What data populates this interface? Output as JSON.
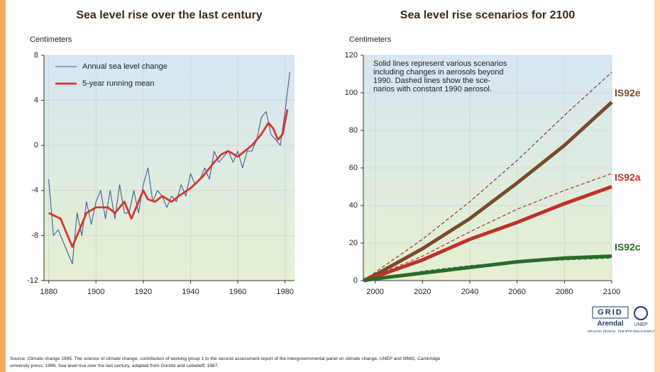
{
  "chart_data": [
    {
      "type": "line",
      "title": "Sea level rise over the last century",
      "ylabel": "Centimeters",
      "xlim": [
        1878,
        1984
      ],
      "xticks": [
        1880,
        1900,
        1920,
        1940,
        1960,
        1980
      ],
      "ylim": [
        -12,
        8
      ],
      "yticks": [
        -12,
        -8,
        -4,
        0,
        4,
        8
      ],
      "grid": true,
      "legend": "upper left",
      "series": [
        {
          "name": "Annual sea level change",
          "color": "#3a5f9a",
          "style": "thin",
          "x": [
            1880,
            1882,
            1884,
            1886,
            1888,
            1890,
            1892,
            1894,
            1896,
            1898,
            1900,
            1902,
            1904,
            1906,
            1908,
            1910,
            1912,
            1914,
            1916,
            1918,
            1920,
            1922,
            1924,
            1926,
            1928,
            1930,
            1932,
            1934,
            1936,
            1938,
            1940,
            1942,
            1944,
            1946,
            1948,
            1950,
            1952,
            1954,
            1956,
            1958,
            1960,
            1962,
            1964,
            1966,
            1968,
            1970,
            1972,
            1974,
            1976,
            1978,
            1980,
            1982
          ],
          "values": [
            -3,
            -8,
            -7.5,
            -8.5,
            -9.5,
            -10.5,
            -6,
            -8,
            -5,
            -7,
            -5,
            -4,
            -6.5,
            -4,
            -6.5,
            -3.5,
            -6,
            -6,
            -4,
            -6,
            -3.5,
            -2,
            -5,
            -4,
            -4.5,
            -5.5,
            -4.5,
            -5,
            -3.5,
            -4.5,
            -2.5,
            -3.5,
            -3,
            -2,
            -3,
            -0.5,
            -1.5,
            -1,
            -0.5,
            -1.5,
            -0.5,
            -2,
            -0.5,
            -0.5,
            0.5,
            2.5,
            3,
            1,
            0.5,
            0,
            3,
            6.5
          ]
        },
        {
          "name": "5-year running mean",
          "color": "#d9342b",
          "style": "thick",
          "x": [
            1880,
            1885,
            1888,
            1890,
            1893,
            1896,
            1900,
            1905,
            1908,
            1912,
            1915,
            1918,
            1920,
            1922,
            1925,
            1928,
            1932,
            1935,
            1940,
            1945,
            1950,
            1953,
            1956,
            1960,
            1963,
            1966,
            1970,
            1973,
            1975,
            1977,
            1979,
            1981
          ],
          "values": [
            -6,
            -6.5,
            -8,
            -9,
            -7.5,
            -6,
            -5.5,
            -5.5,
            -6,
            -5,
            -6.5,
            -5,
            -4,
            -4.8,
            -5,
            -4.5,
            -5,
            -4.5,
            -3.8,
            -2.8,
            -1.5,
            -0.8,
            -0.5,
            -1,
            -0.5,
            0,
            1,
            2,
            1.5,
            0.5,
            1,
            3.2
          ]
        }
      ]
    },
    {
      "type": "line",
      "title": "Sea level rise scenarios for 2100",
      "ylabel": "Centimeters",
      "xlim": [
        1995,
        2100
      ],
      "xticks": [
        2000,
        2020,
        2040,
        2060,
        2080,
        2100
      ],
      "ylim": [
        0,
        120
      ],
      "yticks": [
        0,
        20,
        40,
        60,
        80,
        100,
        120
      ],
      "grid": true,
      "series_labels": "end",
      "annotation": [
        "Solid lines represent various scenarios",
        "including changes in aerosols beyond",
        "1990. Dashed lines show the sce-",
        "narios with constant 1990 aerosol."
      ],
      "series": [
        {
          "color": "#8a3a2a",
          "style": "dashed",
          "x": [
            1995,
            2020,
            2040,
            2060,
            2080,
            2100
          ],
          "values": [
            0,
            22,
            42,
            64,
            88,
            111
          ]
        },
        {
          "name": "IS92e",
          "color": "#7a4a2a",
          "style": "heavy",
          "x": [
            1995,
            2000,
            2020,
            2040,
            2060,
            2080,
            2100
          ],
          "values": [
            0,
            3,
            17,
            33,
            52,
            72,
            95
          ]
        },
        {
          "color": "#b0302a",
          "style": "dashed",
          "x": [
            1995,
            2020,
            2040,
            2060,
            2080,
            2100
          ],
          "values": [
            0,
            13,
            26,
            38,
            48,
            57
          ]
        },
        {
          "name": "IS92a",
          "color": "#c0302a",
          "style": "heavy",
          "x": [
            1995,
            2000,
            2020,
            2040,
            2060,
            2080,
            2100
          ],
          "values": [
            0,
            2,
            11,
            22,
            31,
            41,
            50
          ]
        },
        {
          "color": "#3a6a3a",
          "style": "dashed",
          "x": [
            1995,
            2020,
            2040,
            2060,
            2080,
            2100
          ],
          "values": [
            0,
            5,
            8,
            10,
            11,
            12
          ]
        },
        {
          "name": "IS92c",
          "color": "#2a6a2a",
          "style": "heavy",
          "x": [
            1995,
            2000,
            2020,
            2040,
            2060,
            2080,
            2100
          ],
          "values": [
            0,
            1,
            4,
            7,
            10,
            12,
            13
          ]
        }
      ]
    }
  ],
  "credits": {
    "grid": "GRID",
    "arendal": "Arendal",
    "unep": "UNEP",
    "design": "GRAPHIC DESIGN : PHILIPPE REKACEWICZ"
  },
  "source": [
    "Source: Climate change 1995. The science of climate change, contribution of working group 1 to the second assessment report of the intergovernmental panel on climate change, UNEP and WMO, Cambridge",
    "university press,  1996; Sea level rise over the last century, adapted from Gornitz and Lebedeff, 1987."
  ]
}
